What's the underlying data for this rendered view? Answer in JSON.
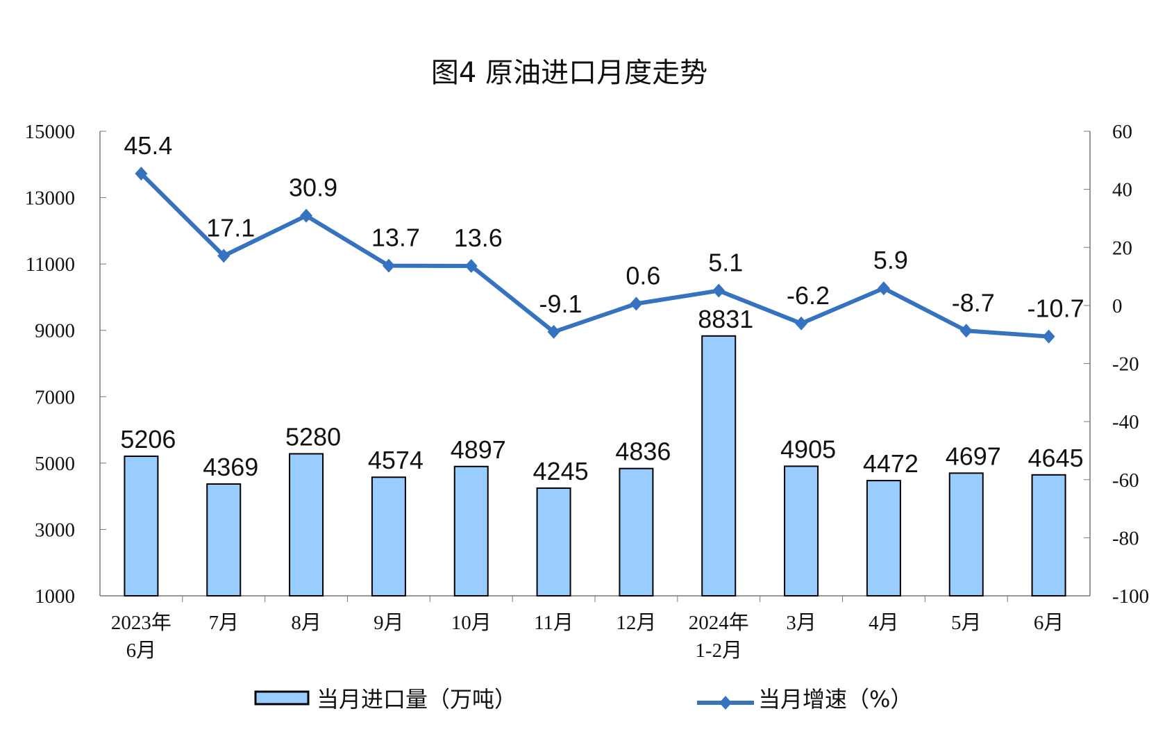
{
  "chart_data": {
    "type": "bar+line",
    "title": "图4  原油进口月度走势",
    "categories": [
      [
        "2023年",
        "6月"
      ],
      [
        "7月"
      ],
      [
        "8月"
      ],
      [
        "9月"
      ],
      [
        "10月"
      ],
      [
        "11月"
      ],
      [
        "12月"
      ],
      [
        "2024年",
        "1-2月"
      ],
      [
        "3月"
      ],
      [
        "4月"
      ],
      [
        "5月"
      ],
      [
        "6月"
      ]
    ],
    "series": [
      {
        "name": "当月进口量（万吨）",
        "type": "bar",
        "axis": "left",
        "color": "#99CCFF",
        "values": [
          5206,
          4369,
          5280,
          4574,
          4897,
          4245,
          4836,
          8831,
          4905,
          4472,
          4697,
          4645
        ]
      },
      {
        "name": "当月增速（%）",
        "type": "line",
        "axis": "right",
        "color": "#3572C0",
        "values": [
          45.4,
          17.1,
          30.9,
          13.7,
          13.6,
          -9.1,
          0.6,
          5.1,
          -6.2,
          5.9,
          -8.7,
          -10.7
        ]
      }
    ],
    "y_left": {
      "range": [
        1000,
        15000
      ],
      "ticks": [
        1000,
        3000,
        5000,
        7000,
        9000,
        11000,
        13000,
        15000
      ]
    },
    "y_right": {
      "range": [
        -100,
        60
      ],
      "ticks": [
        -100,
        -80,
        -60,
        -40,
        -20,
        0,
        20,
        40,
        60
      ]
    },
    "legend": "bottom",
    "grid": false
  }
}
